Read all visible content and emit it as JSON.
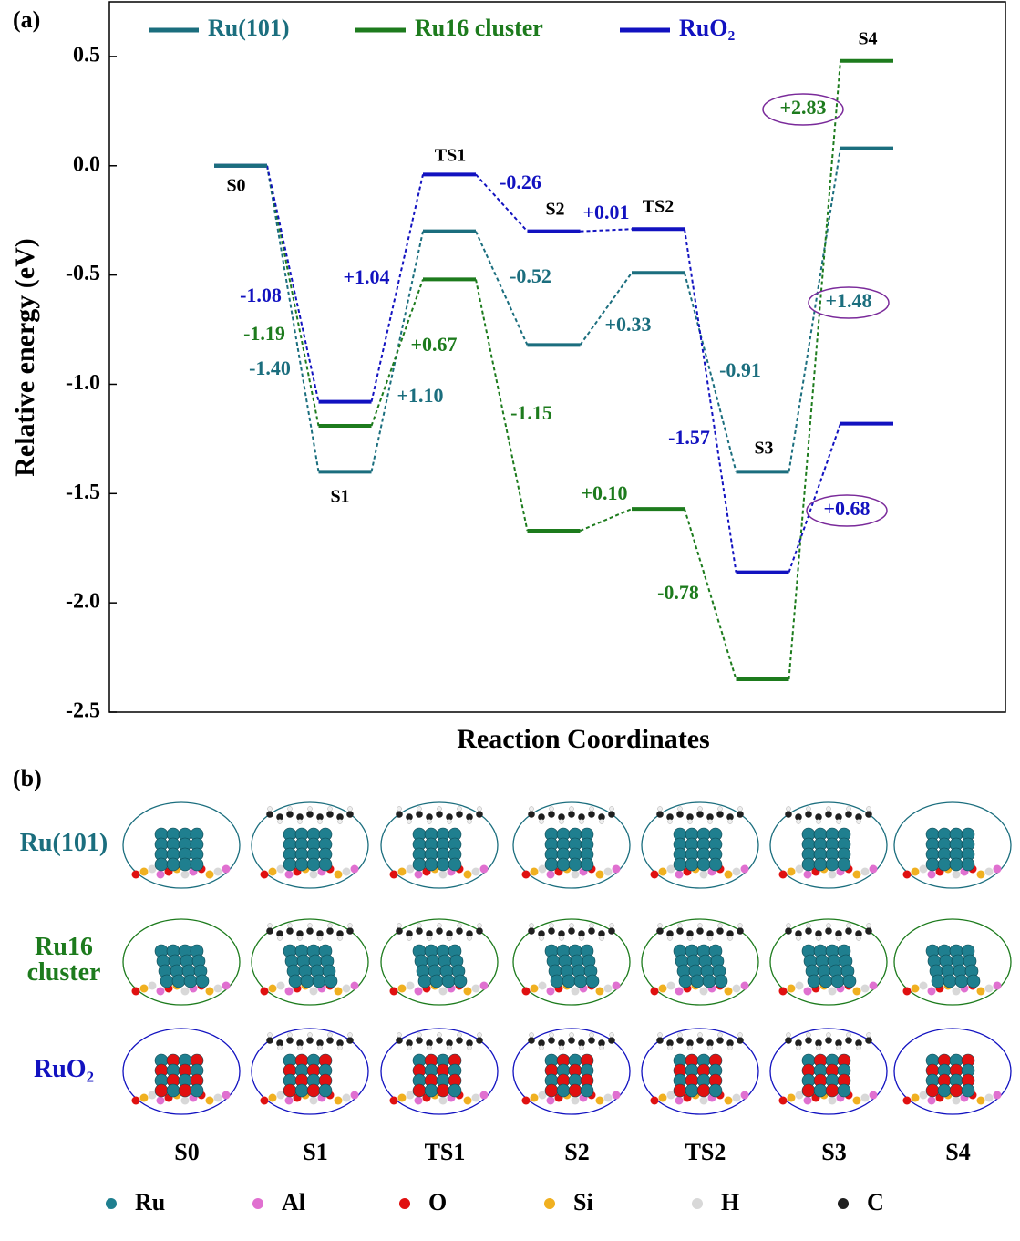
{
  "chart_data": {
    "type": "energy",
    "panel_label": "(a)",
    "x_label": "Reaction Coordinates",
    "y_label": "Relative energy (eV)",
    "categories": [
      "S0",
      "S1",
      "TS1",
      "S2",
      "TS2",
      "S3",
      "S4"
    ],
    "series": [
      {
        "name": "Ru(101)",
        "color": "#1b6e7e",
        "values": [
          0,
          -1.4,
          -0.3,
          -0.82,
          -0.49,
          -1.4,
          0.08
        ],
        "step_labels": [
          "-1.40",
          "+1.10",
          "-0.52",
          "+0.33",
          "-0.91",
          "+1.48"
        ]
      },
      {
        "name": "Ru16 cluster",
        "color": "#1d7b1d",
        "values": [
          0,
          -1.19,
          -0.52,
          -1.67,
          -1.57,
          -2.35,
          0.48
        ],
        "step_labels": [
          "-1.19",
          "+0.67",
          "-1.15",
          "+0.10",
          "-0.78",
          "+2.83"
        ]
      },
      {
        "name": "RuO₂",
        "color": "#1212c0",
        "values": [
          0,
          -1.08,
          -0.04,
          -0.3,
          -0.29,
          -1.86,
          -1.18
        ],
        "step_labels": [
          "-1.08",
          "+1.04",
          "-0.26",
          "+0.01",
          "-1.57",
          "+0.68"
        ]
      }
    ],
    "ylim": [
      -2.5,
      0.75
    ],
    "yticks": [
      -2.5,
      {
        "value": -2,
        "label": "-2.0"
      },
      -1.5,
      {
        "value": -1,
        "label": "-1.0"
      },
      -0.5,
      {
        "value": 0,
        "label": "0.0"
      },
      0.5
    ],
    "legend": "top",
    "grid": false
  },
  "panel_b": {
    "label": "(b)",
    "rows": [
      {
        "label": "Ru(101)",
        "color": "#1b6e7e"
      },
      {
        "label": "Ru16 cluster",
        "color": "#1d7b1d"
      },
      {
        "label": "RuO₂",
        "color": "#1212c0"
      }
    ],
    "columns": [
      "S0",
      "S1",
      "TS1",
      "S2",
      "TS2",
      "S3",
      "S4"
    ],
    "elements": [
      {
        "name": "Ru",
        "color": "#1f7f8f"
      },
      {
        "name": "Al",
        "color": "#e070d0"
      },
      {
        "name": "O",
        "color": "#e01010"
      },
      {
        "name": "Si",
        "color": "#f0b020"
      },
      {
        "name": "H",
        "color": "#d8d8d8"
      },
      {
        "name": "C",
        "color": "#202020"
      }
    ]
  }
}
